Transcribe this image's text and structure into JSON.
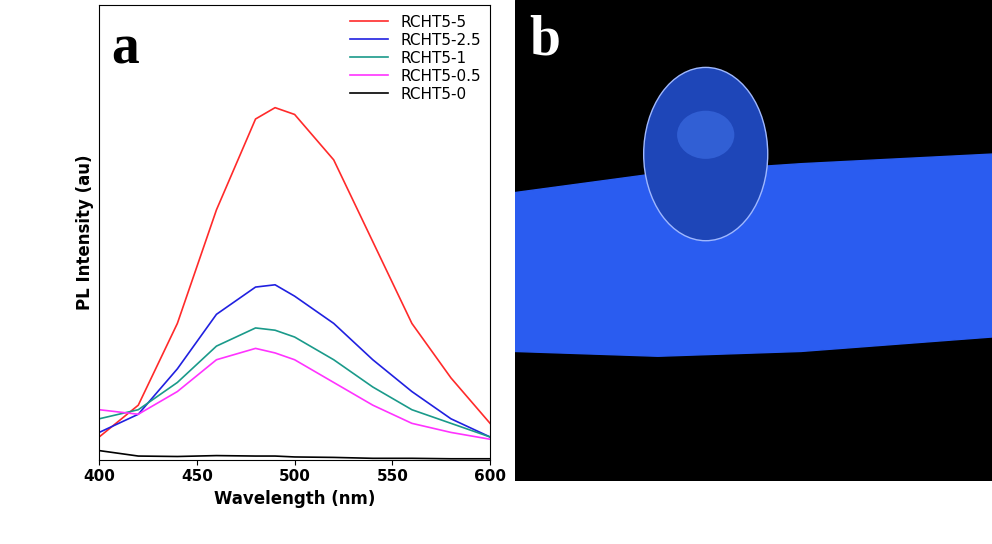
{
  "chart_data": {
    "type": "line",
    "annotations": [
      "a"
    ],
    "x_label": "Wavelength (nm)",
    "y_label": "PL Intensity (au)",
    "x": [
      400,
      420,
      440,
      460,
      480,
      490,
      500,
      520,
      540,
      560,
      580,
      600
    ],
    "series": [
      {
        "name": "RCHT5-5",
        "color": "#ff2a2a",
        "values": [
          5,
          12,
          30,
          55,
          75,
          77.5,
          76,
          66,
          48,
          30,
          18,
          8
        ]
      },
      {
        "name": "RCHT5-2.5",
        "color": "#2020e0",
        "values": [
          6,
          10,
          20,
          32,
          38,
          38.5,
          36,
          30,
          22,
          15,
          9,
          5
        ]
      },
      {
        "name": "RCHT5-1",
        "color": "#1a9a8a",
        "values": [
          9,
          11,
          17,
          25,
          29,
          28.5,
          27,
          22,
          16,
          11,
          8,
          5
        ]
      },
      {
        "name": "RCHT5-0.5",
        "color": "#ff33ff",
        "values": [
          11,
          10,
          15,
          22,
          24.5,
          23.5,
          22,
          17,
          12,
          8,
          6,
          4.5
        ]
      },
      {
        "name": "RCHT5-0",
        "color": "#000000",
        "values": [
          2,
          0.8,
          0.7,
          0.9,
          0.8,
          0.8,
          0.6,
          0.5,
          0.3,
          0.3,
          0.2,
          0.2
        ]
      }
    ],
    "xlim": [
      400,
      600
    ],
    "xticks": [
      400,
      450,
      500,
      550,
      600
    ],
    "ylim": [
      0,
      100
    ],
    "yticks": [],
    "tick_labels": "x",
    "legend": "upper right"
  },
  "photo": {
    "label": "b"
  }
}
